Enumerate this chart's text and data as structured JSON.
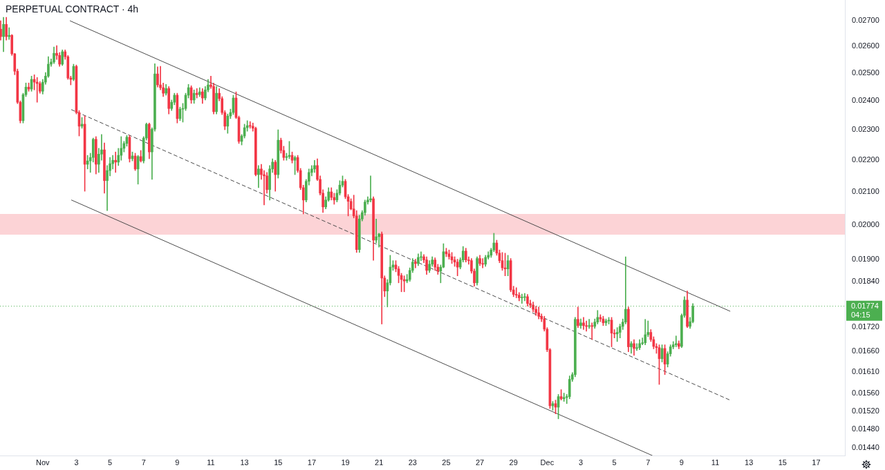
{
  "chart_data": {
    "type": "candlestick",
    "title": "PERPETUAL CONTRACT · 4h",
    "log": true,
    "xlim": [
      "--10-29T11:00",
      "--12-18T17:00"
    ],
    "xticks": [
      {
        "value": "--11-01",
        "label": "Nov"
      },
      {
        "value": "--11-03",
        "label": "3"
      },
      {
        "value": "--11-05",
        "label": "5"
      },
      {
        "value": "--11-07",
        "label": "7"
      },
      {
        "value": "--11-09",
        "label": "9"
      },
      {
        "value": "--11-11",
        "label": "11"
      },
      {
        "value": "--11-13",
        "label": "13"
      },
      {
        "value": "--11-15",
        "label": "15"
      },
      {
        "value": "--11-17",
        "label": "17"
      },
      {
        "value": "--11-19",
        "label": "19"
      },
      {
        "value": "--11-21",
        "label": "21"
      },
      {
        "value": "--11-23",
        "label": "23"
      },
      {
        "value": "--11-25",
        "label": "25"
      },
      {
        "value": "--11-27",
        "label": "27"
      },
      {
        "value": "--11-29",
        "label": "29"
      },
      {
        "value": "--12-01",
        "label": "Dec"
      },
      {
        "value": "--12-03",
        "label": "3"
      },
      {
        "value": "--12-05",
        "label": "5"
      },
      {
        "value": "--12-07",
        "label": "7"
      },
      {
        "value": "--12-09",
        "label": "9"
      },
      {
        "value": "--12-11",
        "label": "11"
      },
      {
        "value": "--12-13",
        "label": "13"
      },
      {
        "value": "--12-15",
        "label": "15"
      },
      {
        "value": "--12-17",
        "label": "17"
      }
    ],
    "ylim": [
      0.01424,
      0.02784
    ],
    "yticks": [
      {
        "value": 0.0144,
        "label": "0.01440"
      },
      {
        "value": 0.0148,
        "label": "0.01480"
      },
      {
        "value": 0.0152,
        "label": "0.01520"
      },
      {
        "value": 0.0156,
        "label": "0.01560"
      },
      {
        "value": 0.0161,
        "label": "0.01610"
      },
      {
        "value": 0.0166,
        "label": "0.01660"
      },
      {
        "value": 0.0172,
        "label": "0.01720"
      },
      {
        "value": 0.0184,
        "label": "0.01840"
      },
      {
        "value": 0.019,
        "label": "0.01900"
      },
      {
        "value": 0.02,
        "label": "0.02000"
      },
      {
        "value": 0.021,
        "label": "0.02100"
      },
      {
        "value": 0.022,
        "label": "0.02200"
      },
      {
        "value": 0.023,
        "label": "0.02300"
      },
      {
        "value": 0.024,
        "label": "0.02400"
      },
      {
        "value": 0.025,
        "label": "0.02500"
      },
      {
        "value": 0.026,
        "label": "0.02600"
      },
      {
        "value": 0.027,
        "label": "0.02700"
      }
    ],
    "x": [
      "--10-29T12:00",
      "--10-29T16:00",
      "--10-29T20:00",
      "--10-30T00:00",
      "--10-30T04:00",
      "--10-30T08:00",
      "--10-30T12:00",
      "--10-30T16:00",
      "--10-30T20:00",
      "--10-31T00:00",
      "--10-31T04:00",
      "--10-31T08:00",
      "--10-31T12:00",
      "--10-31T16:00",
      "--10-31T20:00",
      "--11-01T00:00",
      "--11-01T04:00",
      "--11-01T08:00",
      "--11-01T12:00",
      "--11-01T16:00",
      "--11-01T20:00",
      "--11-02T00:00",
      "--11-02T04:00",
      "--11-02T08:00",
      "--11-02T12:00",
      "--11-02T16:00",
      "--11-02T20:00",
      "--11-03T00:00",
      "--11-03T04:00",
      "--11-03T08:00",
      "--11-03T12:00",
      "--11-03T16:00",
      "--11-03T20:00",
      "--11-04T00:00",
      "--11-04T04:00",
      "--11-04T08:00",
      "--11-04T12:00",
      "--11-04T16:00",
      "--11-04T20:00",
      "--11-05T00:00",
      "--11-05T04:00",
      "--11-05T08:00",
      "--11-05T12:00",
      "--11-05T16:00",
      "--11-05T20:00",
      "--11-06T00:00",
      "--11-06T04:00",
      "--11-06T08:00",
      "--11-06T12:00",
      "--11-06T16:00",
      "--11-06T20:00",
      "--11-07T00:00",
      "--11-07T04:00",
      "--11-07T08:00",
      "--11-07T12:00",
      "--11-07T16:00",
      "--11-07T20:00",
      "--11-08T00:00",
      "--11-08T04:00",
      "--11-08T08:00",
      "--11-08T12:00",
      "--11-08T16:00",
      "--11-08T20:00",
      "--11-09T00:00",
      "--11-09T04:00",
      "--11-09T08:00",
      "--11-09T12:00",
      "--11-09T16:00",
      "--11-09T20:00",
      "--11-10T00:00",
      "--11-10T04:00",
      "--11-10T08:00",
      "--11-10T12:00",
      "--11-10T16:00",
      "--11-10T20:00",
      "--11-11T00:00",
      "--11-11T04:00",
      "--11-11T08:00",
      "--11-11T12:00",
      "--11-11T16:00",
      "--11-11T20:00",
      "--11-12T00:00",
      "--11-12T04:00",
      "--11-12T08:00",
      "--11-12T12:00",
      "--11-12T16:00",
      "--11-12T20:00",
      "--11-13T00:00",
      "--11-13T04:00",
      "--11-13T08:00",
      "--11-13T12:00",
      "--11-13T16:00",
      "--11-13T20:00",
      "--11-14T00:00",
      "--11-14T04:00",
      "--11-14T08:00",
      "--11-14T12:00",
      "--11-14T16:00",
      "--11-14T20:00",
      "--11-15T00:00",
      "--11-15T04:00",
      "--11-15T08:00",
      "--11-15T12:00",
      "--11-15T16:00",
      "--11-15T20:00",
      "--11-16T00:00",
      "--11-16T04:00",
      "--11-16T08:00",
      "--11-16T12:00",
      "--11-16T16:00",
      "--11-16T20:00",
      "--11-17T00:00",
      "--11-17T04:00",
      "--11-17T08:00",
      "--11-17T12:00",
      "--11-17T16:00",
      "--11-17T20:00",
      "--11-18T00:00",
      "--11-18T04:00",
      "--11-18T08:00",
      "--11-18T12:00",
      "--11-18T16:00",
      "--11-18T20:00",
      "--11-19T00:00",
      "--11-19T04:00",
      "--11-19T08:00",
      "--11-19T12:00",
      "--11-19T16:00",
      "--11-19T20:00",
      "--11-20T00:00",
      "--11-20T04:00",
      "--11-20T08:00",
      "--11-20T12:00",
      "--11-20T16:00",
      "--11-20T20:00",
      "--11-21T00:00",
      "--11-21T04:00",
      "--11-21T08:00",
      "--11-21T12:00",
      "--11-21T16:00",
      "--11-21T20:00",
      "--11-22T00:00",
      "--11-22T04:00",
      "--11-22T08:00",
      "--11-22T12:00",
      "--11-22T16:00",
      "--11-22T20:00",
      "--11-23T00:00",
      "--11-23T04:00",
      "--11-23T08:00",
      "--11-23T12:00",
      "--11-23T16:00",
      "--11-23T20:00",
      "--11-24T00:00",
      "--11-24T04:00",
      "--11-24T08:00",
      "--11-24T12:00",
      "--11-24T16:00",
      "--11-24T20:00",
      "--11-25T00:00",
      "--11-25T04:00",
      "--11-25T08:00",
      "--11-25T12:00",
      "--11-25T16:00",
      "--11-25T20:00",
      "--11-26T00:00",
      "--11-26T04:00",
      "--11-26T08:00",
      "--11-26T12:00",
      "--11-26T16:00",
      "--11-26T20:00",
      "--11-27T00:00",
      "--11-27T04:00",
      "--11-27T08:00",
      "--11-27T12:00",
      "--11-27T16:00",
      "--11-27T20:00",
      "--11-28T00:00",
      "--11-28T04:00",
      "--11-28T08:00",
      "--11-28T12:00",
      "--11-28T16:00",
      "--11-28T20:00",
      "--11-29T00:00",
      "--11-29T04:00",
      "--11-29T08:00",
      "--11-29T12:00",
      "--11-29T16:00",
      "--11-29T20:00",
      "--11-30T00:00",
      "--11-30T04:00",
      "--11-30T08:00",
      "--11-30T12:00",
      "--11-30T16:00",
      "--11-30T20:00",
      "--12-01T00:00",
      "--12-01T04:00",
      "--12-01T08:00",
      "--12-01T12:00",
      "--12-01T16:00",
      "--12-01T20:00",
      "--12-02T00:00",
      "--12-02T04:00",
      "--12-02T08:00",
      "--12-02T12:00",
      "--12-02T16:00",
      "--12-02T20:00",
      "--12-03T00:00",
      "--12-03T04:00",
      "--12-03T08:00",
      "--12-03T12:00",
      "--12-03T16:00",
      "--12-03T20:00",
      "--12-04T00:00",
      "--12-04T04:00",
      "--12-04T08:00",
      "--12-04T12:00",
      "--12-04T16:00",
      "--12-04T20:00",
      "--12-05T00:00",
      "--12-05T04:00",
      "--12-05T08:00",
      "--12-05T12:00",
      "--12-05T16:00",
      "--12-05T20:00",
      "--12-06T00:00",
      "--12-06T04:00",
      "--12-06T08:00",
      "--12-06T12:00",
      "--12-06T16:00",
      "--12-06T20:00",
      "--12-07T00:00",
      "--12-07T04:00",
      "--12-07T08:00",
      "--12-07T12:00",
      "--12-07T16:00",
      "--12-07T20:00",
      "--12-08T00:00",
      "--12-08T04:00",
      "--12-08T08:00",
      "--12-08T12:00",
      "--12-08T16:00",
      "--12-08T20:00",
      "--12-09T00:00",
      "--12-09T04:00",
      "--12-09T08:00",
      "--12-09T12:00",
      "--12-09T16:00"
    ],
    "ohlc": [
      [
        0.02667,
        0.027,
        0.02624,
        0.02638
      ],
      [
        0.02638,
        0.02714,
        0.0258,
        0.02686
      ],
      [
        0.02686,
        0.02714,
        0.02624,
        0.02638
      ],
      [
        0.02638,
        0.02673,
        0.02627,
        0.02643
      ],
      [
        0.02643,
        0.02646,
        0.02566,
        0.02572
      ],
      [
        0.02572,
        0.02574,
        0.02494,
        0.02507
      ],
      [
        0.02507,
        0.02515,
        0.0239,
        0.02395
      ],
      [
        0.02395,
        0.024,
        0.02323,
        0.02331
      ],
      [
        0.02331,
        0.02427,
        0.02323,
        0.02422
      ],
      [
        0.02422,
        0.02464,
        0.02415,
        0.02449
      ],
      [
        0.02449,
        0.02464,
        0.02434,
        0.02442
      ],
      [
        0.02442,
        0.02489,
        0.02434,
        0.02477
      ],
      [
        0.02477,
        0.02494,
        0.02439,
        0.02467
      ],
      [
        0.02467,
        0.02484,
        0.02395,
        0.02462
      ],
      [
        0.02462,
        0.02469,
        0.02427,
        0.02434
      ],
      [
        0.02434,
        0.02477,
        0.02424,
        0.02467
      ],
      [
        0.02467,
        0.02502,
        0.02459,
        0.02489
      ],
      [
        0.02489,
        0.02561,
        0.02484,
        0.02533
      ],
      [
        0.02533,
        0.02553,
        0.02525,
        0.02541
      ],
      [
        0.02541,
        0.02598,
        0.02535,
        0.02574
      ],
      [
        0.02574,
        0.02603,
        0.02551,
        0.02566
      ],
      [
        0.02566,
        0.02577,
        0.02525,
        0.02533
      ],
      [
        0.02533,
        0.02587,
        0.02528,
        0.0258
      ],
      [
        0.0258,
        0.02587,
        0.02551,
        0.02561
      ],
      [
        0.02561,
        0.02566,
        0.02477,
        0.02482
      ],
      [
        0.02482,
        0.02489,
        0.02457,
        0.02477
      ],
      [
        0.02477,
        0.02533,
        0.02472,
        0.02525
      ],
      [
        0.02525,
        0.0253,
        0.02354,
        0.02359
      ],
      [
        0.02359,
        0.02366,
        0.02279,
        0.02312
      ],
      [
        0.02312,
        0.02342,
        0.02305,
        0.02319
      ],
      [
        0.02319,
        0.02347,
        0.02101,
        0.02186
      ],
      [
        0.02186,
        0.02215,
        0.02171,
        0.02197
      ],
      [
        0.02197,
        0.02222,
        0.0216,
        0.02208
      ],
      [
        0.02208,
        0.02272,
        0.02193,
        0.02268
      ],
      [
        0.02268,
        0.02277,
        0.02155,
        0.02186
      ],
      [
        0.02186,
        0.02238,
        0.0216,
        0.02219
      ],
      [
        0.02219,
        0.02284,
        0.02199,
        0.02233
      ],
      [
        0.02233,
        0.02256,
        0.02095,
        0.02134
      ],
      [
        0.02134,
        0.02182,
        0.02042,
        0.02166
      ],
      [
        0.02166,
        0.02208,
        0.02149,
        0.02188
      ],
      [
        0.02188,
        0.02215,
        0.02171,
        0.02199
      ],
      [
        0.02199,
        0.02226,
        0.0216,
        0.02193
      ],
      [
        0.02193,
        0.02238,
        0.02182,
        0.02215
      ],
      [
        0.02215,
        0.02277,
        0.02199,
        0.02238
      ],
      [
        0.02238,
        0.02261,
        0.02226,
        0.02254
      ],
      [
        0.02254,
        0.02281,
        0.02245,
        0.02275
      ],
      [
        0.02275,
        0.02281,
        0.02193,
        0.02204
      ],
      [
        0.02204,
        0.02226,
        0.02197,
        0.02213
      ],
      [
        0.02213,
        0.02222,
        0.02166,
        0.02171
      ],
      [
        0.02171,
        0.02215,
        0.02123,
        0.02211
      ],
      [
        0.02211,
        0.02231,
        0.02193,
        0.02197
      ],
      [
        0.02197,
        0.02277,
        0.0219,
        0.02272
      ],
      [
        0.02272,
        0.02323,
        0.02265,
        0.02319
      ],
      [
        0.02319,
        0.02323,
        0.02204,
        0.02226
      ],
      [
        0.02226,
        0.02307,
        0.02138,
        0.02302
      ],
      [
        0.02302,
        0.02535,
        0.02295,
        0.02497
      ],
      [
        0.02497,
        0.02523,
        0.02449,
        0.02457
      ],
      [
        0.02457,
        0.02525,
        0.02439,
        0.02447
      ],
      [
        0.02447,
        0.02464,
        0.02415,
        0.02427
      ],
      [
        0.02427,
        0.02459,
        0.0242,
        0.02444
      ],
      [
        0.02444,
        0.02451,
        0.02354,
        0.02373
      ],
      [
        0.02373,
        0.02403,
        0.02366,
        0.02395
      ],
      [
        0.02395,
        0.02427,
        0.02386,
        0.0242
      ],
      [
        0.0242,
        0.02427,
        0.02323,
        0.02338
      ],
      [
        0.02338,
        0.02378,
        0.02331,
        0.02371
      ],
      [
        0.02371,
        0.02391,
        0.02326,
        0.02373
      ],
      [
        0.02373,
        0.02427,
        0.02366,
        0.0242
      ],
      [
        0.0242,
        0.02459,
        0.0241,
        0.02447
      ],
      [
        0.02447,
        0.02454,
        0.02391,
        0.02403
      ],
      [
        0.02403,
        0.02439,
        0.02391,
        0.02427
      ],
      [
        0.02427,
        0.02444,
        0.0241,
        0.02422
      ],
      [
        0.02422,
        0.02447,
        0.02415,
        0.02432
      ],
      [
        0.02432,
        0.02444,
        0.02391,
        0.0241
      ],
      [
        0.0241,
        0.02451,
        0.02403,
        0.02439
      ],
      [
        0.02439,
        0.02477,
        0.02432,
        0.02457
      ],
      [
        0.02457,
        0.02489,
        0.02444,
        0.02451
      ],
      [
        0.02451,
        0.02464,
        0.02354,
        0.02362
      ],
      [
        0.02362,
        0.02451,
        0.02354,
        0.02427
      ],
      [
        0.02427,
        0.02444,
        0.024,
        0.02408
      ],
      [
        0.02408,
        0.02415,
        0.02352,
        0.02359
      ],
      [
        0.02359,
        0.02366,
        0.023,
        0.02312
      ],
      [
        0.02312,
        0.02354,
        0.02288,
        0.02347
      ],
      [
        0.02347,
        0.02371,
        0.02338,
        0.02359
      ],
      [
        0.02359,
        0.0242,
        0.02352,
        0.0241
      ],
      [
        0.0241,
        0.02432,
        0.02338,
        0.02342
      ],
      [
        0.02342,
        0.02347,
        0.02254,
        0.02261
      ],
      [
        0.02261,
        0.02284,
        0.02249,
        0.02279
      ],
      [
        0.02279,
        0.02319,
        0.02272,
        0.02307
      ],
      [
        0.02307,
        0.02331,
        0.02295,
        0.02314
      ],
      [
        0.02314,
        0.02328,
        0.02305,
        0.02312
      ],
      [
        0.02312,
        0.02323,
        0.02295,
        0.02305
      ],
      [
        0.02305,
        0.02309,
        0.02149,
        0.02153
      ],
      [
        0.02153,
        0.02182,
        0.02112,
        0.02171
      ],
      [
        0.02171,
        0.02186,
        0.02138,
        0.02153
      ],
      [
        0.02153,
        0.02166,
        0.02059,
        0.02149
      ],
      [
        0.02149,
        0.0216,
        0.02095,
        0.02106
      ],
      [
        0.02106,
        0.02182,
        0.02074,
        0.02171
      ],
      [
        0.02171,
        0.02204,
        0.0216,
        0.02193
      ],
      [
        0.02193,
        0.02199,
        0.02101,
        0.02153
      ],
      [
        0.02153,
        0.023,
        0.02142,
        0.02265
      ],
      [
        0.02265,
        0.02272,
        0.02222,
        0.02231
      ],
      [
        0.02231,
        0.02245,
        0.02199,
        0.02208
      ],
      [
        0.02208,
        0.02222,
        0.02199,
        0.02211
      ],
      [
        0.02211,
        0.02261,
        0.02204,
        0.02215
      ],
      [
        0.02215,
        0.02226,
        0.0219,
        0.02199
      ],
      [
        0.02199,
        0.02213,
        0.02153,
        0.02208
      ],
      [
        0.02208,
        0.02215,
        0.0216,
        0.02166
      ],
      [
        0.02166,
        0.02173,
        0.02106,
        0.02112
      ],
      [
        0.02112,
        0.0212,
        0.02032,
        0.02074
      ],
      [
        0.02074,
        0.02138,
        0.02068,
        0.02132
      ],
      [
        0.02132,
        0.02171,
        0.0212,
        0.0216
      ],
      [
        0.0216,
        0.02182,
        0.02149,
        0.02171
      ],
      [
        0.02171,
        0.02199,
        0.0216,
        0.02182
      ],
      [
        0.02182,
        0.02204,
        0.02134,
        0.02138
      ],
      [
        0.02138,
        0.02149,
        0.02089,
        0.02095
      ],
      [
        0.02095,
        0.02106,
        0.02036,
        0.02053
      ],
      [
        0.02053,
        0.02084,
        0.02047,
        0.02074
      ],
      [
        0.02074,
        0.02112,
        0.0207,
        0.02099
      ],
      [
        0.02099,
        0.02112,
        0.02074,
        0.02082
      ],
      [
        0.02082,
        0.02095,
        0.02061,
        0.02074
      ],
      [
        0.02074,
        0.02106,
        0.02068,
        0.02095
      ],
      [
        0.02095,
        0.02134,
        0.02089,
        0.0212
      ],
      [
        0.0212,
        0.02149,
        0.02114,
        0.02132
      ],
      [
        0.02132,
        0.02138,
        0.02078,
        0.02084
      ],
      [
        0.02084,
        0.02091,
        0.02026,
        0.0207
      ],
      [
        0.0207,
        0.02078,
        0.02044,
        0.02047
      ],
      [
        0.02047,
        0.02089,
        0.0202,
        0.02026
      ],
      [
        0.02026,
        0.02042,
        0.0192,
        0.01928
      ],
      [
        0.01928,
        0.02028,
        0.0192,
        0.02017
      ],
      [
        0.02017,
        0.02042,
        0.02011,
        0.02036
      ],
      [
        0.02036,
        0.02074,
        0.02028,
        0.02068
      ],
      [
        0.02068,
        0.02084,
        0.02061,
        0.02074
      ],
      [
        0.02074,
        0.02149,
        0.02068,
        0.02078
      ],
      [
        0.02078,
        0.02084,
        0.01898,
        0.01955
      ],
      [
        0.01955,
        0.02017,
        0.01947,
        0.01965
      ],
      [
        0.01965,
        0.01975,
        0.01935,
        0.01973
      ],
      [
        0.01973,
        0.01979,
        0.01728,
        0.01849
      ],
      [
        0.01849,
        0.01855,
        0.01799,
        0.01814
      ],
      [
        0.01814,
        0.01845,
        0.01772,
        0.01836
      ],
      [
        0.01836,
        0.01912,
        0.0183,
        0.01879
      ],
      [
        0.01879,
        0.01897,
        0.0187,
        0.01885
      ],
      [
        0.01885,
        0.01897,
        0.01866,
        0.01874
      ],
      [
        0.01874,
        0.01881,
        0.01836,
        0.01856
      ],
      [
        0.01856,
        0.01862,
        0.01812,
        0.01845
      ],
      [
        0.01845,
        0.01855,
        0.01812,
        0.01841
      ],
      [
        0.01841,
        0.01859,
        0.01836,
        0.01845
      ],
      [
        0.01845,
        0.01877,
        0.0184,
        0.0187
      ],
      [
        0.0187,
        0.01903,
        0.01864,
        0.01893
      ],
      [
        0.01893,
        0.01901,
        0.01877,
        0.01889
      ],
      [
        0.01889,
        0.01916,
        0.01883,
        0.01906
      ],
      [
        0.01906,
        0.01922,
        0.01897,
        0.01908
      ],
      [
        0.01908,
        0.01914,
        0.01891,
        0.01899
      ],
      [
        0.01899,
        0.01908,
        0.01859,
        0.0187
      ],
      [
        0.0187,
        0.01897,
        0.01864,
        0.01887
      ],
      [
        0.01887,
        0.01908,
        0.01881,
        0.01899
      ],
      [
        0.01899,
        0.01905,
        0.0187,
        0.01879
      ],
      [
        0.01879,
        0.01887,
        0.01859,
        0.01868
      ],
      [
        0.01868,
        0.01885,
        0.01836,
        0.01879
      ],
      [
        0.01879,
        0.01945,
        0.01877,
        0.01922
      ],
      [
        0.01922,
        0.01932,
        0.01908,
        0.01916
      ],
      [
        0.01916,
        0.01927,
        0.01901,
        0.01908
      ],
      [
        0.01908,
        0.0192,
        0.01889,
        0.01899
      ],
      [
        0.01899,
        0.01908,
        0.01881,
        0.01893
      ],
      [
        0.01893,
        0.01901,
        0.01855,
        0.01879
      ],
      [
        0.01879,
        0.01905,
        0.01874,
        0.01899
      ],
      [
        0.01899,
        0.01937,
        0.01893,
        0.01924
      ],
      [
        0.01924,
        0.01932,
        0.01893,
        0.01899
      ],
      [
        0.01899,
        0.01908,
        0.01887,
        0.01897
      ],
      [
        0.01897,
        0.01903,
        0.01862,
        0.01868
      ],
      [
        0.01868,
        0.01874,
        0.01827,
        0.01836
      ],
      [
        0.01836,
        0.01908,
        0.0183,
        0.01903
      ],
      [
        0.01903,
        0.01912,
        0.01883,
        0.01889
      ],
      [
        0.01889,
        0.01903,
        0.01877,
        0.01887
      ],
      [
        0.01887,
        0.01912,
        0.01881,
        0.01906
      ],
      [
        0.01906,
        0.01922,
        0.01901,
        0.01912
      ],
      [
        0.01912,
        0.01932,
        0.01906,
        0.01927
      ],
      [
        0.01927,
        0.01975,
        0.01922,
        0.01947
      ],
      [
        0.01947,
        0.01955,
        0.01912,
        0.01918
      ],
      [
        0.01918,
        0.01927,
        0.01891,
        0.01897
      ],
      [
        0.01897,
        0.0192,
        0.0187,
        0.01877
      ],
      [
        0.01877,
        0.01918,
        0.01855,
        0.01874
      ],
      [
        0.01874,
        0.01912,
        0.01855,
        0.01897
      ],
      [
        0.01897,
        0.01903,
        0.01812,
        0.01817
      ],
      [
        0.01817,
        0.01827,
        0.01799,
        0.01805
      ],
      [
        0.01805,
        0.01823,
        0.01796,
        0.01803
      ],
      [
        0.01803,
        0.0181,
        0.01788,
        0.01796
      ],
      [
        0.01796,
        0.01806,
        0.01781,
        0.01797
      ],
      [
        0.01797,
        0.01808,
        0.01788,
        0.01799
      ],
      [
        0.01799,
        0.01805,
        0.01774,
        0.01781
      ],
      [
        0.01781,
        0.0179,
        0.0177,
        0.01777
      ],
      [
        0.01777,
        0.01785,
        0.01759,
        0.01766
      ],
      [
        0.01766,
        0.01774,
        0.0175,
        0.01757
      ],
      [
        0.01757,
        0.01772,
        0.01741,
        0.01748
      ],
      [
        0.01748,
        0.01754,
        0.01734,
        0.01741
      ],
      [
        0.01741,
        0.01748,
        0.0171,
        0.01715
      ],
      [
        0.01715,
        0.01719,
        0.01659,
        0.01664
      ],
      [
        0.01664,
        0.01667,
        0.01526,
        0.01532
      ],
      [
        0.01532,
        0.01542,
        0.01522,
        0.01537
      ],
      [
        0.01537,
        0.01545,
        0.01514,
        0.01529
      ],
      [
        0.01529,
        0.01558,
        0.01503,
        0.01553
      ],
      [
        0.01553,
        0.01569,
        0.01545,
        0.01548
      ],
      [
        0.01548,
        0.01561,
        0.01542,
        0.01551
      ],
      [
        0.01551,
        0.01558,
        0.01537,
        0.01553
      ],
      [
        0.01553,
        0.01601,
        0.01548,
        0.01593
      ],
      [
        0.01593,
        0.01609,
        0.01588,
        0.01604
      ],
      [
        0.01604,
        0.01745,
        0.01599,
        0.0174
      ],
      [
        0.0174,
        0.01772,
        0.01719,
        0.01724
      ],
      [
        0.01724,
        0.01741,
        0.01717,
        0.01731
      ],
      [
        0.01731,
        0.01745,
        0.01714,
        0.01724
      ],
      [
        0.01724,
        0.01736,
        0.0171,
        0.01722
      ],
      [
        0.01722,
        0.0174,
        0.01717,
        0.01724
      ],
      [
        0.01724,
        0.01731,
        0.01689,
        0.01722
      ],
      [
        0.01722,
        0.01741,
        0.01717,
        0.01733
      ],
      [
        0.01733,
        0.01763,
        0.01728,
        0.01745
      ],
      [
        0.01745,
        0.01752,
        0.01734,
        0.01741
      ],
      [
        0.01741,
        0.01748,
        0.01724,
        0.01731
      ],
      [
        0.01731,
        0.01741,
        0.01724,
        0.01736
      ],
      [
        0.01736,
        0.01745,
        0.01728,
        0.01738
      ],
      [
        0.01738,
        0.01745,
        0.01671,
        0.01705
      ],
      [
        0.01705,
        0.01714,
        0.01693,
        0.01703
      ],
      [
        0.01703,
        0.01719,
        0.01684,
        0.01707
      ],
      [
        0.01707,
        0.01728,
        0.01693,
        0.01722
      ],
      [
        0.01722,
        0.01741,
        0.01714,
        0.01733
      ],
      [
        0.01733,
        0.01908,
        0.01728,
        0.01766
      ],
      [
        0.01766,
        0.01772,
        0.01659,
        0.01671
      ],
      [
        0.01671,
        0.01684,
        0.01655,
        0.01679
      ],
      [
        0.01679,
        0.01689,
        0.0165,
        0.01667
      ],
      [
        0.01667,
        0.01679,
        0.01662,
        0.01669
      ],
      [
        0.01669,
        0.01689,
        0.01664,
        0.01679
      ],
      [
        0.01679,
        0.01693,
        0.01676,
        0.01681
      ],
      [
        0.01681,
        0.0174,
        0.01676,
        0.01701
      ],
      [
        0.01701,
        0.01736,
        0.01696,
        0.01707
      ],
      [
        0.01707,
        0.01714,
        0.01684,
        0.01689
      ],
      [
        0.01689,
        0.01696,
        0.01666,
        0.01672
      ],
      [
        0.01672,
        0.01679,
        0.01655,
        0.01669
      ],
      [
        0.01669,
        0.01676,
        0.01581,
        0.01642
      ],
      [
        0.01642,
        0.01676,
        0.01634,
        0.01667
      ],
      [
        0.01667,
        0.01676,
        0.01604,
        0.01629
      ],
      [
        0.01629,
        0.01659,
        0.01622,
        0.01654
      ],
      [
        0.01654,
        0.01676,
        0.01648,
        0.01671
      ],
      [
        0.01671,
        0.01684,
        0.01666,
        0.01676
      ],
      [
        0.01676,
        0.01698,
        0.01671,
        0.01679
      ],
      [
        0.01679,
        0.01686,
        0.01666,
        0.01672
      ],
      [
        0.01672,
        0.01754,
        0.01669,
        0.0175
      ],
      [
        0.0175,
        0.01799,
        0.01745,
        0.0179
      ],
      [
        0.0179,
        0.01814,
        0.01719,
        0.01722
      ],
      [
        0.01722,
        0.01745,
        0.01717,
        0.01734
      ],
      [
        0.01734,
        0.01781,
        0.01731,
        0.01774
      ]
    ],
    "colors": [
      "#f23645",
      "#4caf50",
      "#f23645",
      "#4caf50",
      "#f23645",
      "#f23645",
      "#f23645",
      "#f23645",
      "#4caf50",
      "#4caf50",
      "#f23645",
      "#4caf50",
      "#f23645",
      "#f23645",
      "#f23645",
      "#4caf50",
      "#4caf50",
      "#4caf50",
      "#4caf50",
      "#4caf50",
      "#f23645",
      "#f23645",
      "#4caf50",
      "#f23645",
      "#f23645",
      "#f23645",
      "#4caf50",
      "#f23645",
      "#f23645",
      "#4caf50",
      "#f23645",
      "#4caf50",
      "#4caf50",
      "#4caf50",
      "#f23645",
      "#4caf50",
      "#4caf50",
      "#f23645",
      "#4caf50",
      "#4caf50",
      "#4caf50",
      "#f23645",
      "#4caf50",
      "#4caf50",
      "#4caf50",
      "#4caf50",
      "#f23645",
      "#4caf50",
      "#f23645",
      "#4caf50",
      "#f23645",
      "#4caf50",
      "#4caf50",
      "#f23645",
      "#4caf50",
      "#4caf50",
      "#f23645",
      "#f23645",
      "#f23645",
      "#4caf50",
      "#f23645",
      "#4caf50",
      "#4caf50",
      "#f23645",
      "#4caf50",
      "#4caf50",
      "#4caf50",
      "#4caf50",
      "#f23645",
      "#4caf50",
      "#f23645",
      "#4caf50",
      "#f23645",
      "#4caf50",
      "#4caf50",
      "#f23645",
      "#f23645",
      "#4caf50",
      "#f23645",
      "#f23645",
      "#f23645",
      "#4caf50",
      "#4caf50",
      "#4caf50",
      "#f23645",
      "#f23645",
      "#4caf50",
      "#4caf50",
      "#4caf50",
      "#f23645",
      "#f23645",
      "#f23645",
      "#4caf50",
      "#f23645",
      "#f23645",
      "#f23645",
      "#4caf50",
      "#4caf50",
      "#f23645",
      "#4caf50",
      "#f23645",
      "#f23645",
      "#4caf50",
      "#4caf50",
      "#f23645",
      "#4caf50",
      "#f23645",
      "#f23645",
      "#f23645",
      "#4caf50",
      "#4caf50",
      "#4caf50",
      "#4caf50",
      "#f23645",
      "#f23645",
      "#f23645",
      "#4caf50",
      "#4caf50",
      "#f23645",
      "#f23645",
      "#4caf50",
      "#4caf50",
      "#4caf50",
      "#f23645",
      "#f23645",
      "#f23645",
      "#f23645",
      "#f23645",
      "#4caf50",
      "#4caf50",
      "#4caf50",
      "#4caf50",
      "#4caf50",
      "#f23645",
      "#4caf50",
      "#4caf50",
      "#f23645",
      "#f23645",
      "#4caf50",
      "#4caf50",
      "#4caf50",
      "#f23645",
      "#f23645",
      "#f23645",
      "#f23645",
      "#4caf50",
      "#4caf50",
      "#4caf50",
      "#f23645",
      "#4caf50",
      "#4caf50",
      "#f23645",
      "#f23645",
      "#4caf50",
      "#4caf50",
      "#f23645",
      "#f23645",
      "#4caf50",
      "#4caf50",
      "#f23645",
      "#f23645",
      "#f23645",
      "#f23645",
      "#f23645",
      "#4caf50",
      "#4caf50",
      "#f23645",
      "#f23645",
      "#f23645",
      "#f23645",
      "#4caf50",
      "#f23645",
      "#f23645",
      "#4caf50",
      "#4caf50",
      "#4caf50",
      "#4caf50",
      "#f23645",
      "#f23645",
      "#f23645",
      "#f23645",
      "#4caf50",
      "#f23645",
      "#f23645",
      "#f23645",
      "#f23645",
      "#4caf50",
      "#4caf50",
      "#f23645",
      "#f23645",
      "#f23645",
      "#f23645",
      "#f23645",
      "#f23645",
      "#f23645",
      "#f23645",
      "#f23645",
      "#4caf50",
      "#f23645",
      "#4caf50",
      "#f23645",
      "#4caf50",
      "#4caf50",
      "#4caf50",
      "#4caf50",
      "#4caf50",
      "#f23645",
      "#4caf50",
      "#f23645",
      "#f23645",
      "#4caf50",
      "#f23645",
      "#4caf50",
      "#4caf50",
      "#f23645",
      "#f23645",
      "#4caf50",
      "#4caf50",
      "#f23645",
      "#f23645",
      "#4caf50",
      "#4caf50",
      "#4caf50",
      "#4caf50",
      "#f23645",
      "#4caf50",
      "#f23645",
      "#4caf50",
      "#4caf50",
      "#4caf50",
      "#4caf50",
      "#4caf50",
      "#f23645",
      "#f23645",
      "#f23645",
      "#f23645",
      "#4caf50",
      "#f23645",
      "#4caf50",
      "#4caf50",
      "#4caf50",
      "#4caf50",
      "#f23645",
      "#4caf50",
      "#4caf50",
      "#f23645",
      "#4caf50",
      "#4caf50"
    ],
    "series": [
      {
        "type": "line",
        "x": [
          "--11-02T15:00",
          "--12-11T21:00"
        ],
        "values": [
          0.027,
          0.01761
        ],
        "color": "#4a4a4a",
        "line_style": "solid"
      },
      {
        "type": "line",
        "x": [
          "--11-02T17:00",
          "--12-11T21:00"
        ],
        "values": [
          0.02369,
          0.01545
        ],
        "color": "#4a4a4a",
        "line_style": "dashed"
      },
      {
        "type": "line",
        "x": [
          "--11-02T17:00",
          "--12-07T06:00"
        ],
        "values": [
          0.02074,
          0.01424
        ],
        "color": "#4a4a4a",
        "line_style": "solid"
      }
    ],
    "bands": [
      {
        "axis": "y",
        "from": 0.01971,
        "to": 0.02032,
        "color": "#fcd3d6"
      }
    ],
    "ref_lines": [
      {
        "axis": "y",
        "value": 0.01774,
        "label": "0.01774",
        "color": "#4caf50",
        "line_style": "dotted"
      }
    ],
    "annotations": [
      "04:15"
    ]
  }
}
